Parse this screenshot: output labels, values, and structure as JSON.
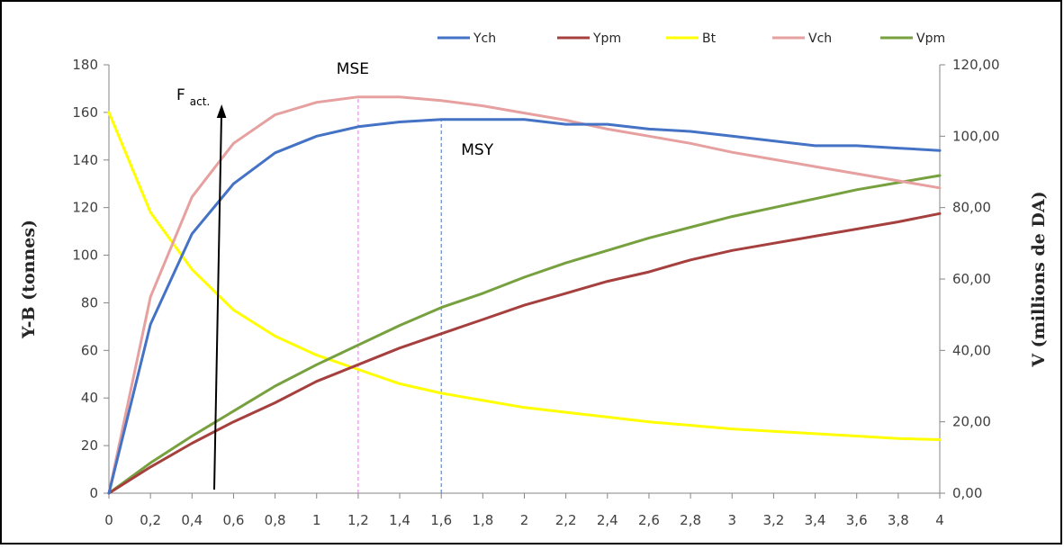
{
  "chart_data": {
    "type": "line",
    "x": [
      0,
      0.2,
      0.4,
      0.6,
      0.8,
      1,
      1.2,
      1.4,
      1.6,
      1.8,
      2,
      2.2,
      2.4,
      2.6,
      2.8,
      3,
      3.2,
      3.4,
      3.6,
      3.8,
      4
    ],
    "x_tick_labels": [
      "0",
      "0,2",
      "0,4",
      "0,6",
      "0,8",
      "1",
      "1,2",
      "1,4",
      "1,6",
      "1,8",
      "2",
      "2,2",
      "2,4",
      "2,6",
      "2,8",
      "3",
      "3,2",
      "3,4",
      "3,6",
      "3,8",
      "4"
    ],
    "ylabel": "Y-B (tonnes)",
    "ylim": [
      0,
      180
    ],
    "y_ticks": [
      "0",
      "20",
      "40",
      "60",
      "80",
      "100",
      "120",
      "140",
      "160",
      "180"
    ],
    "y2label": "V (millions de DA)",
    "y2lim": [
      0,
      120
    ],
    "y2_ticks": [
      "0,00",
      "20,00",
      "40,00",
      "60,00",
      "80,00",
      "100,00",
      "120,00"
    ],
    "grid": false,
    "legend_position": "top-right",
    "series": [
      {
        "name": "Ych",
        "axis": "left",
        "color": "#4472C4",
        "values": [
          0,
          71,
          109,
          130,
          143,
          150,
          154,
          156,
          157,
          157,
          157,
          155,
          155,
          153,
          152,
          150,
          148,
          146,
          146,
          145,
          144
        ]
      },
      {
        "name": "Ypm",
        "axis": "left",
        "color": "#A5403F",
        "values": [
          0,
          11,
          21,
          30,
          38,
          47,
          54,
          61,
          67,
          73,
          79,
          84,
          89,
          93,
          98,
          102,
          105,
          108,
          111,
          114,
          117.5
        ]
      },
      {
        "name": "Bt",
        "axis": "left",
        "color": "#FFFF00",
        "values": [
          160,
          118,
          94,
          77,
          66,
          58,
          52,
          46,
          42,
          39,
          36,
          34,
          32,
          30,
          28.5,
          27,
          26,
          25,
          24,
          23,
          22.5
        ]
      },
      {
        "name": "Vch",
        "axis": "right",
        "color": "#E6A0A0",
        "values": [
          0,
          55,
          83,
          98,
          106,
          109.5,
          111,
          111,
          110,
          108.5,
          106.5,
          104.5,
          102,
          100,
          98,
          95.5,
          93.5,
          91.5,
          89.5,
          87.5,
          85.5
        ]
      },
      {
        "name": "Vpm",
        "axis": "right",
        "color": "#77A03F",
        "values": [
          0,
          8.5,
          16,
          23,
          30,
          36,
          41.5,
          47,
          52,
          56,
          60.5,
          64.5,
          68,
          71.5,
          74.5,
          77.5,
          80,
          82.5,
          85,
          87,
          89
        ]
      }
    ],
    "annotations": [
      {
        "text": "MSE",
        "x": 1.2,
        "color": "#FF66FF"
      },
      {
        "text": "MSY",
        "x": 1.6,
        "color": "#4472C4"
      }
    ],
    "arrow_label": {
      "main": "F",
      "sub": "act."
    }
  }
}
